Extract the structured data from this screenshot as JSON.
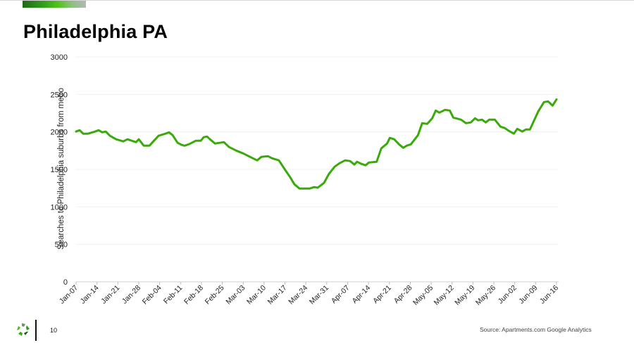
{
  "header": {
    "title": "Philadelphia PA",
    "accent_bar_colors": [
      "#1f6a16",
      "#4fc21c",
      "#b4b8b4"
    ]
  },
  "footer": {
    "page_number": "10",
    "source": "Source: Apartments.com Google Analytics",
    "logo_icon": "recycle-leaf-logo-icon"
  },
  "chart_data": {
    "type": "line",
    "title": "Philadelphia PA",
    "xlabel": "",
    "ylabel": "Searches to Philadelphia suburbs from metro",
    "ylim": [
      0,
      3000
    ],
    "yticks": [
      0,
      500,
      1000,
      1500,
      2000,
      2500,
      3000
    ],
    "grid": "horizontal, faint",
    "legend": "none",
    "line_color": "#3aaa0a",
    "categories": [
      "Jan-07",
      "Jan-14",
      "Jan-21",
      "Jan-28",
      "Feb-04",
      "Feb-11",
      "Feb-18",
      "Feb-25",
      "Mar-03",
      "Mar-10",
      "Mar-17",
      "Mar-24",
      "Mar-31",
      "Apr-07",
      "Apr-14",
      "Apr-21",
      "Apr-28",
      "May-05",
      "May-12",
      "May-19",
      "May-26",
      "Jun-02",
      "Jun-09",
      "Jun-16"
    ],
    "series": [
      {
        "name": "Searches to Philadelphia suburbs from metro",
        "x_pos": [
          0,
          0.17,
          0.34,
          0.57,
          0.91,
          1.08,
          1.25,
          1.42,
          1.62,
          1.92,
          2.26,
          2.46,
          2.67,
          2.87,
          3.0,
          3.24,
          3.51,
          3.95,
          4.28,
          4.45,
          4.62,
          4.86,
          5.06,
          5.19,
          5.4,
          5.73,
          5.97,
          6.11,
          6.27,
          6.41,
          6.65,
          7.08,
          7.32,
          7.66,
          8.0,
          8.4,
          8.67,
          8.87,
          9.18,
          9.38,
          9.71,
          10.02,
          10.25,
          10.45,
          10.69,
          10.93,
          11.19,
          11.4,
          11.57,
          11.87,
          12.11,
          12.38,
          12.61,
          12.88,
          13.12,
          13.32,
          13.45,
          13.66,
          13.86,
          14.02,
          14.39,
          14.61,
          14.89,
          15.02,
          15.23,
          15.46,
          15.66,
          15.83,
          16.03,
          16.37,
          16.57,
          16.81,
          17.05,
          17.22,
          17.39,
          17.66,
          17.89,
          18.06,
          18.43,
          18.67,
          18.9,
          19.1,
          19.24,
          19.44,
          19.61,
          19.78,
          20.05,
          20.32,
          20.52,
          20.72,
          20.96,
          21.12,
          21.36,
          21.53,
          21.73,
          22.13,
          22.4,
          22.6,
          22.81,
          23.0
        ],
        "values": [
          2004,
          2022,
          1976,
          1976,
          2004,
          2022,
          1994,
          2004,
          1948,
          1901,
          1873,
          1901,
          1882,
          1863,
          1901,
          1816,
          1816,
          1948,
          1976,
          1994,
          1957,
          1854,
          1826,
          1816,
          1835,
          1882,
          1882,
          1929,
          1938,
          1901,
          1845,
          1863,
          1798,
          1751,
          1713,
          1657,
          1620,
          1667,
          1676,
          1648,
          1620,
          1489,
          1395,
          1301,
          1245,
          1245,
          1245,
          1264,
          1255,
          1320,
          1442,
          1536,
          1582,
          1620,
          1611,
          1564,
          1601,
          1573,
          1554,
          1592,
          1601,
          1779,
          1845,
          1920,
          1901,
          1835,
          1788,
          1816,
          1835,
          1957,
          2116,
          2107,
          2182,
          2285,
          2257,
          2294,
          2285,
          2191,
          2163,
          2116,
          2126,
          2182,
          2154,
          2163,
          2126,
          2163,
          2163,
          2069,
          2051,
          2013,
          1976,
          2041,
          2004,
          2032,
          2032,
          2275,
          2397,
          2407,
          2350,
          2434
        ]
      }
    ]
  }
}
